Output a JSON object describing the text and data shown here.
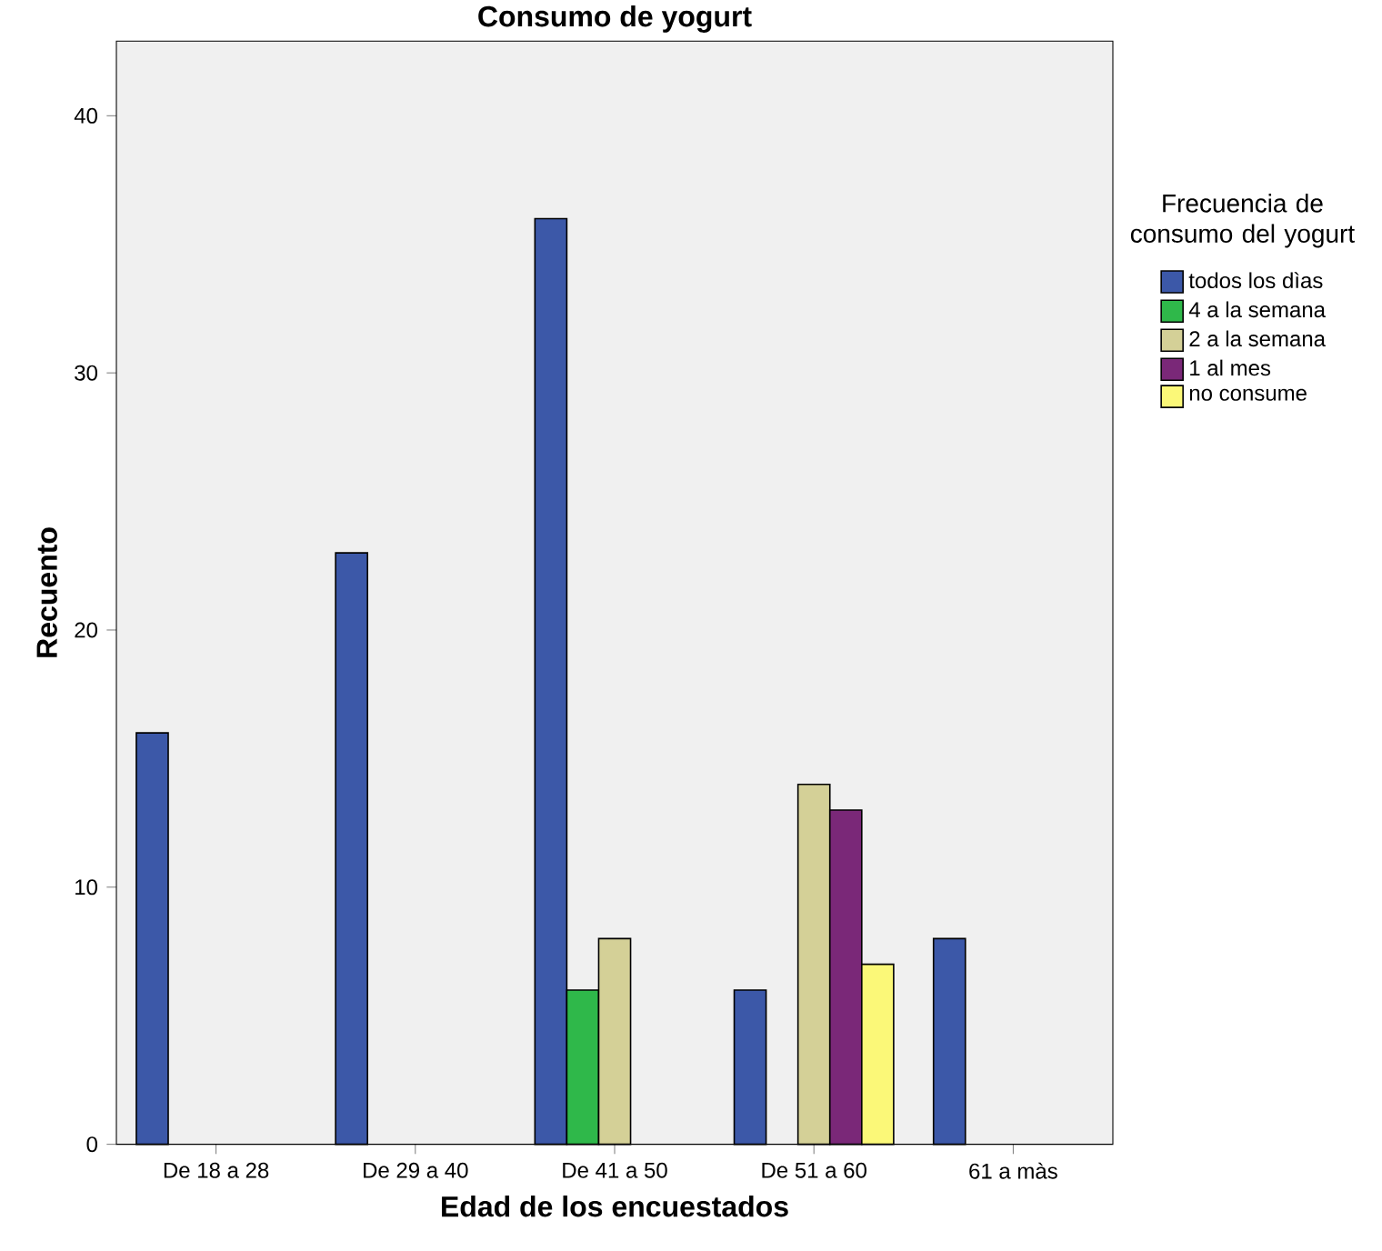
{
  "chart_data": {
    "type": "bar",
    "title": "**Consumo de yogurt**",
    "xlabel": "**Edad de los encuestados**",
    "ylabel": "**Recuento**",
    "legend_title": "Frecuencia de consumo del yogurt",
    "categories": [
      "De 18 a 28",
      "De 29 a 40",
      "De 41 a 50",
      "De 51 a 60",
      "61 a màs"
    ],
    "series": [
      {
        "name": "todos los dìas",
        "color": "#3c58a8",
        "values": [
          16,
          23,
          36,
          6,
          8
        ]
      },
      {
        "name": "4 a la semana",
        "color": "#2fb84a",
        "values": [
          null,
          null,
          6,
          null,
          null
        ]
      },
      {
        "name": "2 a la semana",
        "color": "#d4d097",
        "values": [
          null,
          null,
          8,
          14,
          null
        ]
      },
      {
        "name": "1 al mes",
        "color": "#7a2878",
        "values": [
          null,
          null,
          null,
          13,
          null
        ]
      },
      {
        "name": "no consume",
        "color": "#fbf878",
        "values": [
          null,
          null,
          null,
          7,
          null
        ]
      }
    ],
    "ylim": [
      0,
      42.9
    ],
    "yticks": [
      0,
      10,
      20,
      30,
      40
    ],
    "grid": false,
    "legend": "right"
  }
}
